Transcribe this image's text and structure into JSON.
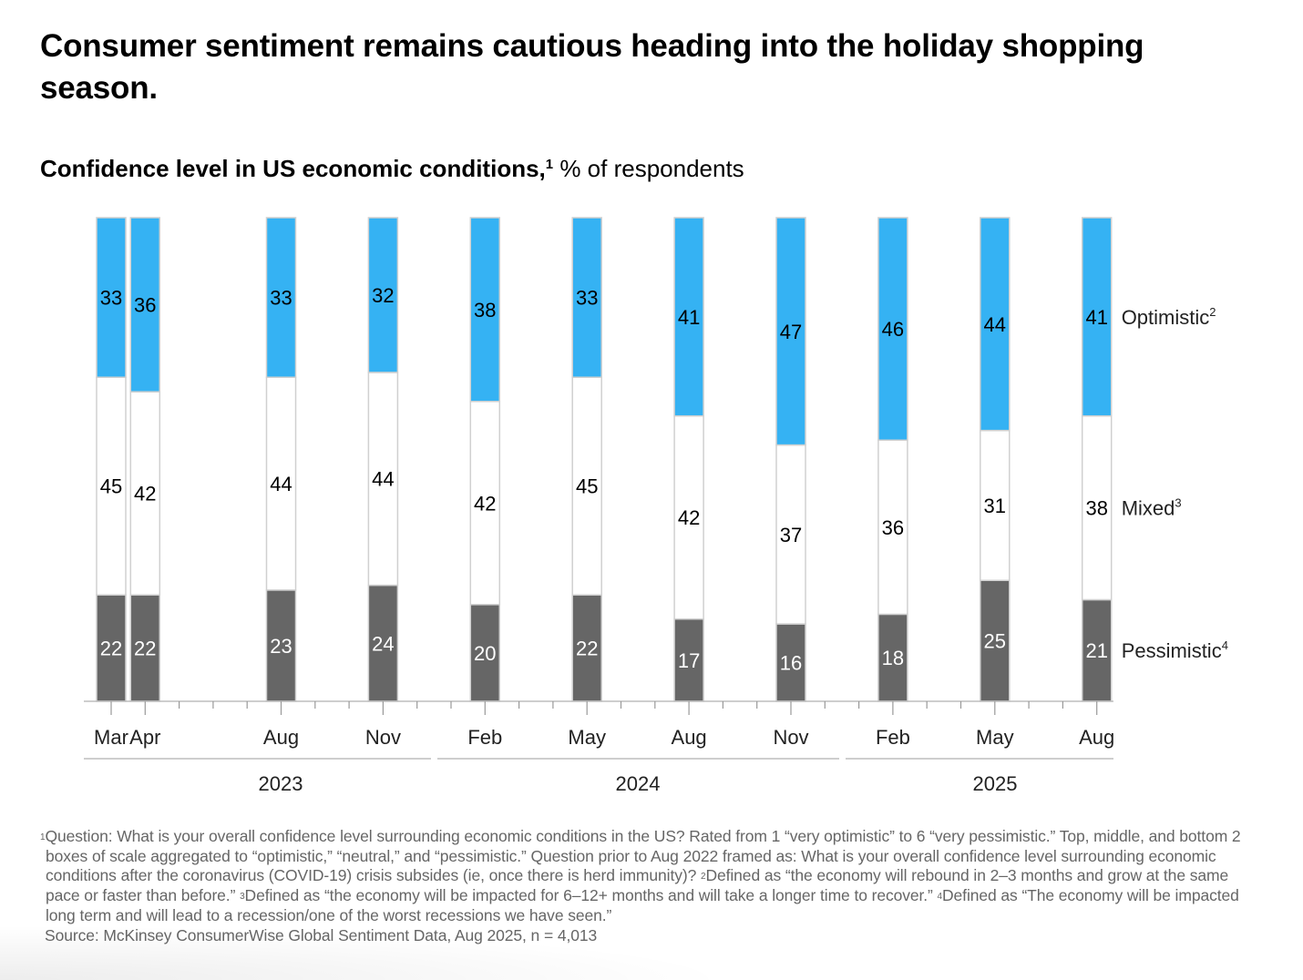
{
  "header": {
    "title": "Consumer sentiment remains cautious heading into the holiday shopping season.",
    "subtitle_bold": "Confidence level in US economic conditions,",
    "subtitle_sup": "1",
    "subtitle_unit": " % of respondents"
  },
  "colors": {
    "optimistic": "#35B2F3",
    "mixed": "#FFFFFF",
    "pessimistic": "#666666",
    "bar_outline": "#D0D0D0",
    "axis": "#BDBDBD"
  },
  "chart_data": {
    "type": "bar",
    "stacked": true,
    "title": "Confidence level in US economic conditions, % of respondents",
    "xlabel": "",
    "ylabel": "% of respondents",
    "ylim": [
      0,
      100
    ],
    "grid": false,
    "legend_position": "right",
    "categories": [
      "Mar 2023",
      "Apr 2023",
      "Aug 2023",
      "Nov 2023",
      "Feb 2024",
      "May 2024",
      "Aug 2024",
      "Nov 2024",
      "Feb 2025",
      "May 2025",
      "Aug 2025"
    ],
    "tick_labels": [
      "Mar",
      "Apr",
      "Aug",
      "Nov",
      "Feb",
      "May",
      "Aug",
      "Nov",
      "Feb",
      "May",
      "Aug"
    ],
    "month_index": [
      0,
      1,
      5,
      8,
      11,
      14,
      17,
      20,
      23,
      26,
      29
    ],
    "axis_months": 30,
    "year_groups": [
      {
        "label": "2023",
        "first_month": 0,
        "last_month": 9
      },
      {
        "label": "2024",
        "first_month": 10,
        "last_month": 21
      },
      {
        "label": "2025",
        "first_month": 22,
        "last_month": 29
      }
    ],
    "series": [
      {
        "name": "Pessimistic",
        "sup": "4",
        "key": "pessimistic",
        "values": [
          22,
          22,
          23,
          24,
          20,
          22,
          17,
          16,
          18,
          25,
          21
        ]
      },
      {
        "name": "Mixed",
        "sup": "3",
        "key": "mixed",
        "values": [
          45,
          42,
          44,
          44,
          42,
          45,
          42,
          37,
          36,
          31,
          38
        ]
      },
      {
        "name": "Optimistic",
        "sup": "2",
        "key": "optimistic",
        "values": [
          33,
          36,
          33,
          32,
          38,
          33,
          41,
          47,
          46,
          44,
          41
        ]
      }
    ]
  },
  "footnotes": {
    "note1_sup": "1",
    "note1_text": "Question: What is your overall confidence level surrounding economic conditions in the US? Rated from 1 “very optimistic” to 6 “very pessimistic.” Top, middle, and bottom 2 boxes of scale aggregated to “optimistic,” “neutral,” and “pessimistic.” Question prior to Aug 2022 framed as: What is your overall confidence level surrounding economic conditions after the coronavirus (COVID-19) crisis subsides (ie, once there is herd immunity)? ",
    "note2_sup": "2",
    "note2_text": "Defined as “the economy will rebound in 2–3 months and grow at the same pace or faster than before.” ",
    "note3_sup": "3",
    "note3_text": "Defined as “the economy will be impacted for 6–12+ months and will take a longer time to recover.” ",
    "note4_sup": "4",
    "note4_text": "Defined as “The economy will be impacted long term and will lead to a recession/one of the worst recessions we have seen.”",
    "source": "Source: McKinsey ConsumerWise Global Sentiment Data, Aug 2025, n = 4,013"
  }
}
